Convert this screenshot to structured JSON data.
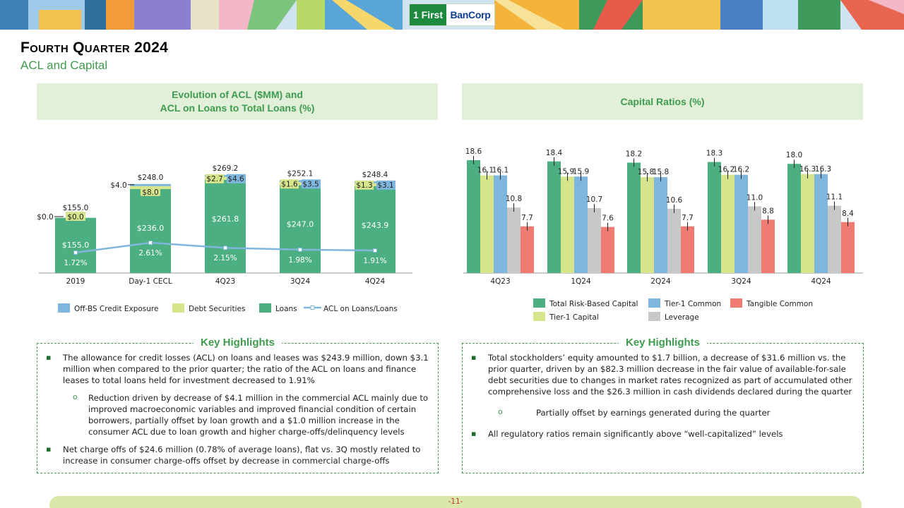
{
  "brand": {
    "logo_mark": "1 First",
    "logo_name": "BanCorp",
    "accent": "#3f9b4f"
  },
  "title": "Fourth Quarter 2024",
  "subtitle": "ACL and Capital",
  "left_panel_title_line1": "Evolution of ACL ($MM) and",
  "left_panel_title_line2": "ACL on Loans to Total Loans (%)",
  "right_panel_title": "Capital Ratios (%)",
  "chart_data": [
    {
      "type": "bar",
      "stacked": true,
      "title": "Evolution of ACL ($MM) and ACL on Loans to Total Loans (%)",
      "categories": [
        "2019",
        "Day-1 CECL",
        "4Q23",
        "3Q24",
        "4Q24"
      ],
      "series": [
        {
          "name": "Loans",
          "color": "#4caf82",
          "values": [
            155.0,
            236.0,
            261.8,
            247.0,
            243.9
          ],
          "labels": [
            "$155.0",
            "$236.0",
            "$261.8",
            "$247.0",
            "$243.9"
          ]
        },
        {
          "name": "Debt Securities",
          "color": "#d6e48b",
          "values": [
            0.0,
            8.0,
            2.7,
            1.6,
            1.3
          ],
          "labels": [
            "$0.0",
            "$8.0",
            "$2.7",
            "$1.6",
            "$1.3"
          ]
        },
        {
          "name": "Off-BS Credit Exposure",
          "color": "#7fb6dd",
          "values": [
            0.0,
            4.0,
            4.6,
            3.5,
            3.1
          ],
          "labels": [
            "$0.0",
            "$4.0",
            "$4.6",
            "$3.5",
            "$3.1"
          ]
        }
      ],
      "totals": [
        "$155.0",
        "$248.0",
        "$269.2",
        "$252.1",
        "$248.4"
      ],
      "line": {
        "name": "ACL on Loans/Loans",
        "color": "#7fb6dd",
        "values": [
          1.72,
          2.61,
          2.15,
          1.98,
          1.91
        ],
        "labels": [
          "1.72%",
          "2.61%",
          "2.15%",
          "1.98%",
          "1.91%"
        ]
      },
      "legend": [
        "Off-BS Credit Exposure",
        "Debt Securities",
        "Loans",
        "ACL on Loans/Loans"
      ]
    },
    {
      "type": "bar",
      "title": "Capital Ratios (%)",
      "categories": [
        "4Q23",
        "1Q24",
        "2Q24",
        "3Q24",
        "4Q24"
      ],
      "series": [
        {
          "name": "Total Risk-Based Capital",
          "color": "#4caf82",
          "values": [
            18.6,
            18.4,
            18.2,
            18.3,
            18.0
          ]
        },
        {
          "name": "Tier-1 Capital",
          "color": "#d6e48b",
          "values": [
            16.1,
            15.9,
            15.8,
            16.2,
            16.3
          ]
        },
        {
          "name": "Tier-1 Common",
          "color": "#7fb6dd",
          "values": [
            16.1,
            15.9,
            15.8,
            16.2,
            16.3
          ]
        },
        {
          "name": "Leverage",
          "color": "#c8c8c8",
          "values": [
            10.8,
            10.7,
            10.6,
            11.0,
            11.1
          ]
        },
        {
          "name": "Tangible Common",
          "color": "#f07b73",
          "values": [
            7.7,
            7.6,
            7.7,
            8.8,
            8.4
          ]
        }
      ],
      "legend_row1": [
        "Total Risk-Based Capital",
        "Tier-1 Common",
        "Tangible Common"
      ],
      "legend_row2": [
        "Tier-1 Capital",
        "Leverage"
      ]
    }
  ],
  "highlights_title": "Key Highlights",
  "left_highlights": {
    "b1": "The allowance for credit losses (ACL) on loans and leases was $243.9 million, down $3.1 million when compared to the prior quarter; the ratio of the ACL on loans and finance leases to total loans held for investment decreased to 1.91%",
    "b1_sub": "Reduction driven by decrease of $4.1 million in the commercial ACL mainly due to improved macroeconomic variables and improved financial condition of certain borrowers, partially offset by loan growth and a $1.0 million increase in the consumer ACL due to loan growth and higher charge-offs/delinquency levels",
    "b2": "Net charge offs of $24.6 million (0.78% of average loans), flat vs. 3Q mostly related to increase in consumer charge-offs offset by decrease in commercial charge-offs"
  },
  "right_highlights": {
    "b1": "Total stockholders’ equity amounted to $1.7 billion, a decrease of $31.6 million vs. the prior quarter, driven by an $82.3 million decrease in the fair value of available-for-sale debt securities due to changes in market rates recognized as part of accumulated other comprehensive loss and the $26.3 million in cash dividends declared during the quarter",
    "b1_sub": "Partially offset by earnings generated during the quarter",
    "b2": "All regulatory ratios remain significantly above “well-capitalized” levels"
  },
  "footer_page": "-11-"
}
